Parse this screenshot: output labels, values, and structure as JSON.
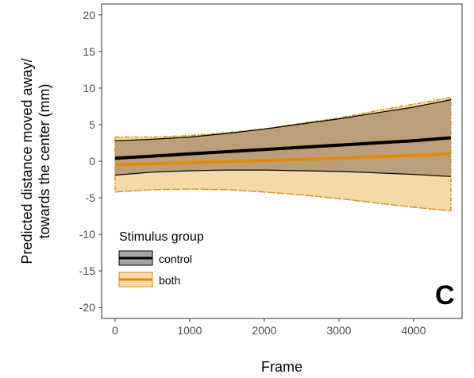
{
  "chart_data": {
    "type": "line",
    "title": "",
    "xlabel": "Frame",
    "ylabel_lines": [
      "Predicted distance moved away/",
      "towards the center (mm)"
    ],
    "xlim": [
      -180,
      4650
    ],
    "ylim": [
      -21.5,
      21.5
    ],
    "x_ticks": [
      0,
      1000,
      2000,
      3000,
      4000
    ],
    "x_tick_labels": [
      "0",
      "1000",
      "2000",
      "3000",
      "4000"
    ],
    "y_ticks": [
      -20,
      -15,
      -10,
      -5,
      0,
      5,
      10,
      15,
      20
    ],
    "y_tick_labels": [
      "-20",
      "-15",
      "-10",
      "-5",
      "0",
      "5",
      "10",
      "15",
      "20"
    ],
    "grid": false,
    "legend": {
      "title": "Stimulus group",
      "placement": "bottom-left",
      "entries": [
        "control",
        "both"
      ]
    },
    "panel_label": "C",
    "x": [
      0,
      500,
      1000,
      1500,
      2000,
      2500,
      3000,
      3500,
      4000,
      4500
    ],
    "series": [
      {
        "name": "both",
        "color": "#e08a12",
        "band_fill": "#f6d9a8",
        "band_stroke": "#d49a2a",
        "mean": [
          -0.5,
          -0.35,
          -0.2,
          -0.05,
          0.1,
          0.25,
          0.4,
          0.6,
          0.8,
          1.0
        ],
        "lower": [
          -4.2,
          -3.9,
          -3.8,
          -3.9,
          -4.2,
          -4.6,
          -5.1,
          -5.7,
          -6.3,
          -6.8
        ],
        "upper": [
          3.3,
          3.3,
          3.5,
          3.9,
          4.4,
          5.2,
          5.9,
          6.9,
          7.8,
          8.7
        ]
      },
      {
        "name": "control",
        "color": "#000000",
        "band_fill": "#b59873",
        "band_stroke": "#000000",
        "mean": [
          0.4,
          0.7,
          1.0,
          1.3,
          1.6,
          1.9,
          2.2,
          2.5,
          2.8,
          3.2
        ],
        "lower": [
          -1.9,
          -1.5,
          -1.3,
          -1.2,
          -1.2,
          -1.3,
          -1.4,
          -1.6,
          -1.8,
          -2.1
        ],
        "upper": [
          2.8,
          3.0,
          3.3,
          3.8,
          4.4,
          5.1,
          5.8,
          6.6,
          7.4,
          8.4
        ]
      }
    ]
  }
}
